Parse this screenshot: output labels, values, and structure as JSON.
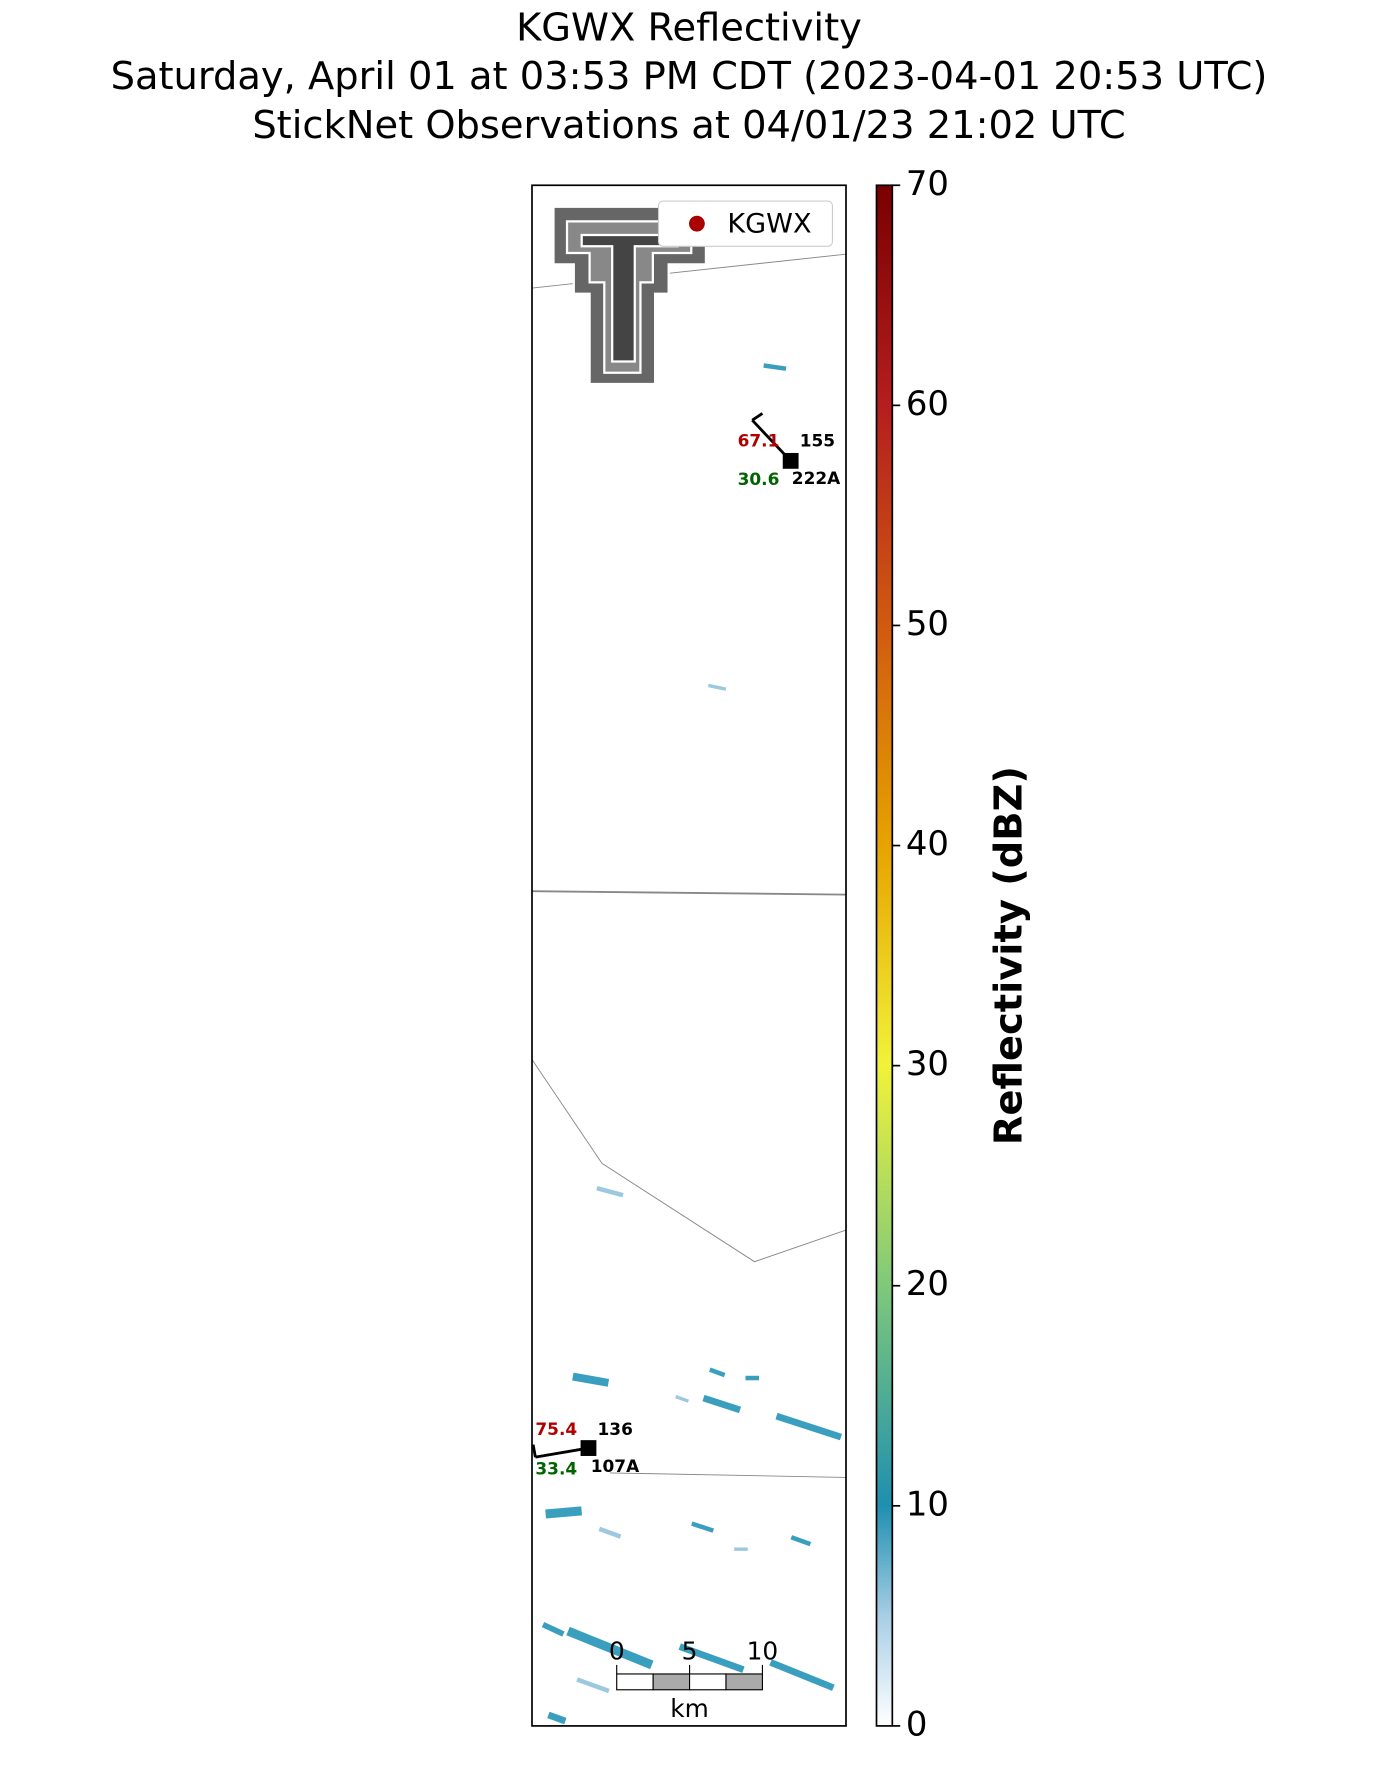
{
  "title": [
    "KGWX Reflectivity",
    "Saturday, April 01 at 03:53 PM CDT (2023-04-01 20:53 UTC)",
    "StickNet Observations at 04/01/23 21:02 UTC"
  ],
  "legend": {
    "label": "KGWX"
  },
  "colorbar": {
    "label": "Reflectivity (dBZ)",
    "lim": [
      0,
      70
    ],
    "ticks": [
      0,
      10,
      20,
      30,
      40,
      50,
      60,
      70
    ]
  },
  "stations": [
    {
      "id": "222A",
      "direction": 155,
      "temperature": 67.1,
      "dewpoint": 30.6
    },
    {
      "id": "107A",
      "direction": 136,
      "temperature": 75.4,
      "dewpoint": 33.4
    }
  ],
  "scale_bar": {
    "ticks": [
      0,
      5,
      10
    ],
    "unit": "km"
  }
}
